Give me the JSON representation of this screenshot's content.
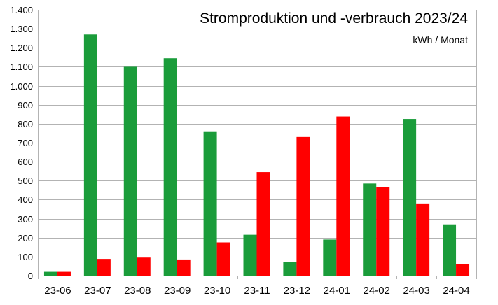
{
  "chart_data": {
    "type": "bar",
    "title": "Stromproduktion und -verbrauch 2023/24",
    "subtitle": "kWh / Monat",
    "xlabel": "",
    "ylabel": "",
    "categories": [
      "23-06",
      "23-07",
      "23-08",
      "23-09",
      "23-10",
      "23-11",
      "23-12",
      "24-01",
      "24-02",
      "24-03",
      "24-04"
    ],
    "series": [
      {
        "color": "#1a9c3a",
        "values": [
          20,
          1270,
          1100,
          1145,
          760,
          215,
          70,
          190,
          485,
          825,
          270
        ]
      },
      {
        "color": "#ff0000",
        "values": [
          20,
          88,
          95,
          85,
          175,
          545,
          730,
          838,
          465,
          380,
          62
        ]
      }
    ],
    "ylim": [
      0,
      1400
    ],
    "yticks": [
      {
        "value": 0,
        "label": "0"
      },
      {
        "value": 100,
        "label": "100"
      },
      {
        "value": 200,
        "label": "200"
      },
      {
        "value": 300,
        "label": "300"
      },
      {
        "value": 400,
        "label": "400"
      },
      {
        "value": 500,
        "label": "500"
      },
      {
        "value": 600,
        "label": "600"
      },
      {
        "value": 700,
        "label": "700"
      },
      {
        "value": 800,
        "label": "800"
      },
      {
        "value": 900,
        "label": "900"
      },
      {
        "value": 1000,
        "label": "1.000"
      },
      {
        "value": 1100,
        "label": "1.100"
      },
      {
        "value": 1200,
        "label": "1.200"
      },
      {
        "value": 1300,
        "label": "1.300"
      },
      {
        "value": 1400,
        "label": "1.400"
      }
    ],
    "grid": true,
    "legend": "none"
  }
}
